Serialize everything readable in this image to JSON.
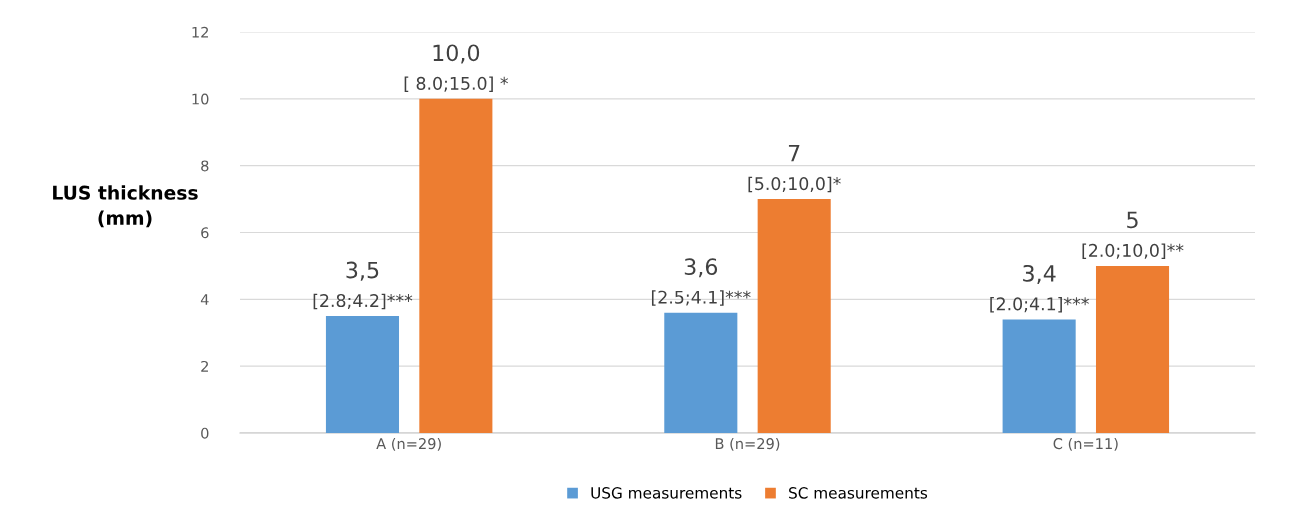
{
  "chart_data": {
    "type": "bar",
    "ylabel": "LUS thickness\n(mm)",
    "categories": [
      "A (n=29)",
      "B (n=29)",
      "C (n=11)"
    ],
    "series": [
      {
        "name": "USG measurements",
        "color": "#5b9bd5",
        "values": [
          3.5,
          3.6,
          3.4
        ],
        "value_labels": [
          "3,5\n[2.8;4.2]***",
          "3,6\n[2.5;4.1]***",
          "3,4\n[2.0;4.1]***"
        ]
      },
      {
        "name": "SC measurements",
        "color": "#ed7d31",
        "values": [
          10.0,
          7,
          5
        ],
        "value_labels": [
          "10,0\n[ 8.0;15.0] *",
          "7\n[5.0;10,0]*",
          "5\n[2.0;10,0]**"
        ]
      }
    ],
    "ylim": [
      0,
      12
    ],
    "yticks": [
      0,
      2,
      4,
      6,
      8,
      10,
      12
    ],
    "grid": "y",
    "legend": "bottom"
  }
}
